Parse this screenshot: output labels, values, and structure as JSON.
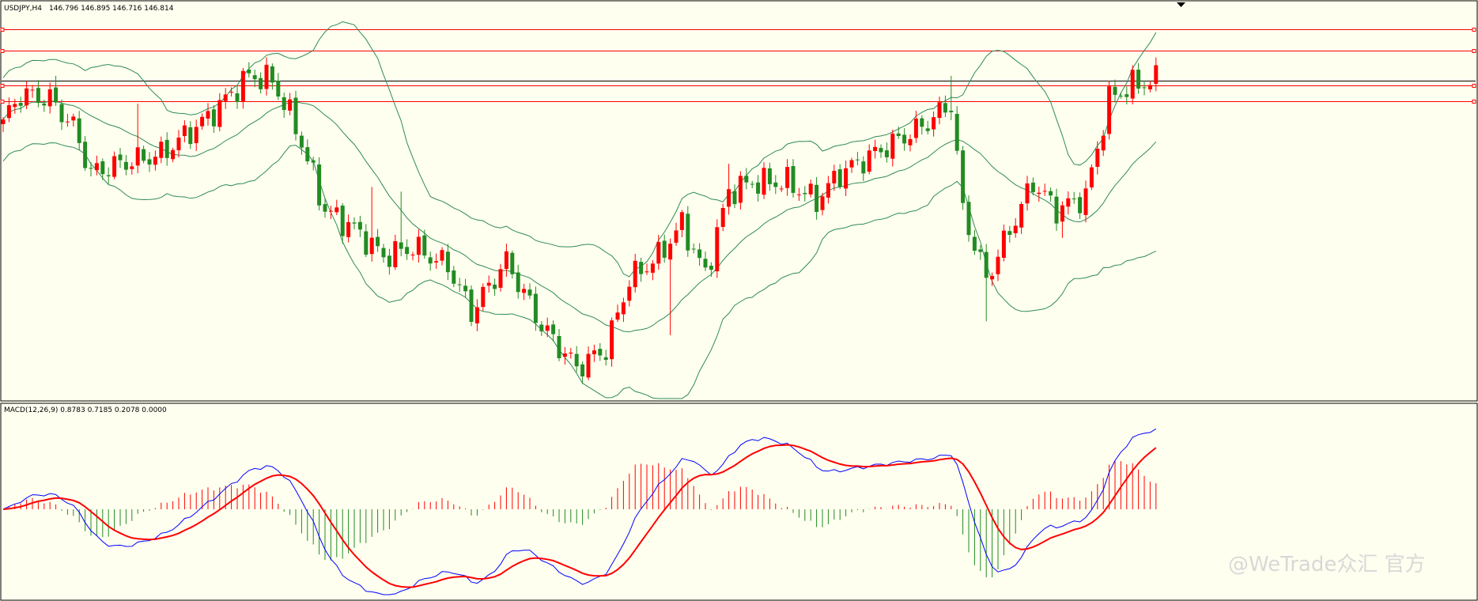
{
  "main_panel": {
    "symbol": "USDJPY,H4",
    "ohlc": "146.796 146.895 146.716 146.814"
  },
  "macd_panel": {
    "label": "MACD(12,26,9) 0.8783 0.7185 0.2078 0.0000"
  },
  "watermark": "@WeTrade众汇 官方",
  "colors": {
    "background": "#fffff0",
    "bull_candle": "#ff0000",
    "bear_candle": "#228b22",
    "bollinger": "#2e8b57",
    "level_lines": "#ff0000",
    "current_price_line": "#000000",
    "macd_line": "#0000ff",
    "signal_line": "#ff0000",
    "hist_positive": "#ff0000",
    "hist_negative": "#228b22"
  },
  "chart_data": [
    {
      "type": "candlestick",
      "title": "USDJPY,H4",
      "subtitle": "146.796 146.895 146.716 146.814",
      "price_range": [
        140.0,
        148.4
      ],
      "horizontal_levels": [
        147.9,
        147.45,
        146.69,
        146.35
      ],
      "current_price": 146.8,
      "bollinger_bands": true,
      "anchors": [
        [
          0,
          145.9
        ],
        [
          3,
          146.5
        ],
        [
          8,
          146.4
        ],
        [
          12,
          145.8
        ],
        [
          15,
          144.8
        ],
        [
          20,
          145.0
        ],
        [
          27,
          145.2
        ],
        [
          35,
          146.0
        ],
        [
          42,
          146.9
        ],
        [
          46,
          146.8
        ],
        [
          50,
          145.8
        ],
        [
          55,
          144.0
        ],
        [
          60,
          143.6
        ],
        [
          65,
          143.0
        ],
        [
          70,
          143.2
        ],
        [
          76,
          142.8
        ],
        [
          80,
          141.8
        ],
        [
          86,
          142.9
        ],
        [
          92,
          141.5
        ],
        [
          98,
          140.6
        ],
        [
          103,
          141.0
        ],
        [
          107,
          142.5
        ],
        [
          112,
          143.0
        ],
        [
          116,
          143.7
        ],
        [
          120,
          142.6
        ],
        [
          124,
          144.4
        ],
        [
          128,
          144.6
        ],
        [
          134,
          144.6
        ],
        [
          139,
          144.2
        ],
        [
          143,
          144.8
        ],
        [
          150,
          145.3
        ],
        [
          157,
          145.8
        ],
        [
          162,
          146.3
        ],
        [
          164,
          144.0
        ],
        [
          168,
          142.5
        ],
        [
          171,
          143.3
        ],
        [
          176,
          144.6
        ],
        [
          180,
          144.0
        ],
        [
          185,
          144.3
        ],
        [
          189,
          146.4
        ],
        [
          193,
          146.7
        ],
        [
          197,
          146.8
        ]
      ],
      "spikes": [
        {
          "index": 5,
          "high": 146.7
        },
        {
          "index": 9,
          "high": 146.9
        },
        {
          "index": 23,
          "high": 146.3
        },
        {
          "index": 41,
          "high": 147.0
        },
        {
          "index": 63,
          "high": 144.5
        },
        {
          "index": 68,
          "high": 144.4
        },
        {
          "index": 114,
          "low": 141.3
        },
        {
          "index": 124,
          "high": 145.0
        },
        {
          "index": 135,
          "high": 145.1
        },
        {
          "index": 162,
          "high": 146.9
        },
        {
          "index": 168,
          "low": 141.6
        },
        {
          "index": 181,
          "low": 143.4
        }
      ]
    },
    {
      "type": "macd",
      "title": "MACD(12,26,9)",
      "values": {
        "macd": 0.8783,
        "signal": 0.7185,
        "histogram": 0.2078,
        "extra": 0.0
      }
    }
  ]
}
